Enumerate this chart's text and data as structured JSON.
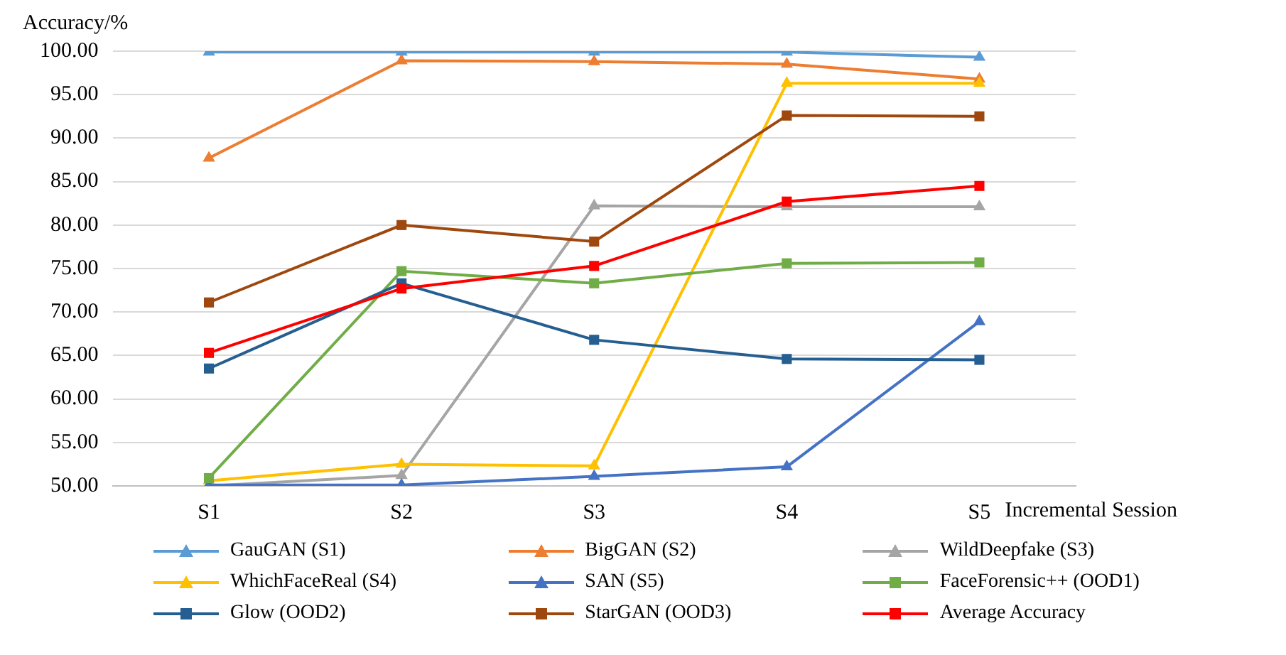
{
  "chart_data": {
    "type": "line",
    "xlabel": "Incremental Session",
    "ylabel": "Accuracy/%",
    "categories": [
      "S1",
      "S2",
      "S3",
      "S4",
      "S5"
    ],
    "ylim": [
      50,
      100
    ],
    "yticks": [
      {
        "value": 50,
        "label": "50.00"
      },
      {
        "value": 55,
        "label": "55.00"
      },
      {
        "value": 60,
        "label": "60.00"
      },
      {
        "value": 65,
        "label": "65.00"
      },
      {
        "value": 70,
        "label": "70.00"
      },
      {
        "value": 75,
        "label": "75.00"
      },
      {
        "value": 80,
        "label": "80.00"
      },
      {
        "value": 85,
        "label": "85.00"
      },
      {
        "value": 90,
        "label": "90.00"
      },
      {
        "value": 95,
        "label": "95.00"
      },
      {
        "value": 100,
        "label": "100.00"
      }
    ],
    "grid": "y",
    "legend": "bottom",
    "line_style": "solid",
    "series": [
      {
        "name": "GauGAN (S1)",
        "color": "#5b9bd5",
        "marker": "triangle",
        "values": [
          99.9,
          99.9,
          99.9,
          99.9,
          99.3
        ]
      },
      {
        "name": "BigGAN (S2)",
        "color": "#ed7d31",
        "marker": "triangle",
        "values": [
          87.7,
          98.9,
          98.8,
          98.5,
          96.8
        ]
      },
      {
        "name": "WildDeepfake  (S3)",
        "color": "#a5a5a5",
        "marker": "triangle",
        "values": [
          50.0,
          51.2,
          82.2,
          82.1,
          82.1
        ]
      },
      {
        "name": "WhichFaceReal (S4)",
        "color": "#ffc000",
        "marker": "triangle",
        "values": [
          50.6,
          52.5,
          52.3,
          96.3,
          96.3
        ]
      },
      {
        "name": "SAN (S5)",
        "color": "#4472c4",
        "marker": "triangle",
        "values": [
          50.1,
          50.1,
          51.1,
          52.2,
          68.9
        ]
      },
      {
        "name": "FaceForensic++ (OOD1)",
        "color": "#70ad47",
        "marker": "square",
        "values": [
          50.9,
          74.7,
          73.3,
          75.6,
          75.7
        ]
      },
      {
        "name": "Glow (OOD2)",
        "color": "#255e91",
        "marker": "square",
        "values": [
          63.5,
          73.3,
          66.8,
          64.6,
          64.5
        ]
      },
      {
        "name": "StarGAN (OOD3)",
        "color": "#9e480e",
        "marker": "square",
        "values": [
          71.1,
          80.0,
          78.1,
          92.6,
          92.5
        ]
      },
      {
        "name": "Average Accuracy",
        "color": "#ff0000",
        "marker": "square",
        "values": [
          65.3,
          72.7,
          75.3,
          82.7,
          84.5
        ]
      }
    ]
  }
}
